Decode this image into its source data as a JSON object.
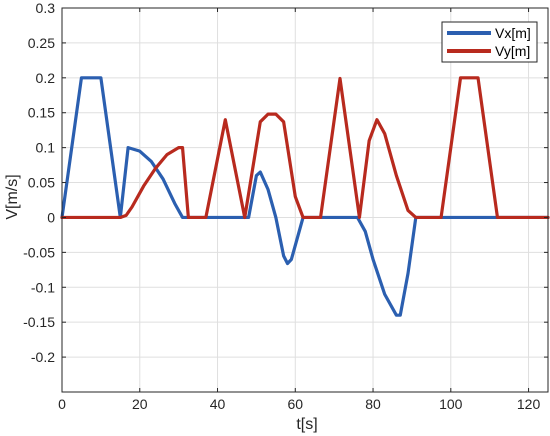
{
  "chart_data": {
    "type": "line",
    "xlabel": "t[s]",
    "ylabel": "V[m/s]",
    "xlim": [
      0,
      125
    ],
    "ylim": [
      -0.25,
      0.3
    ],
    "xticks": [
      0,
      20,
      40,
      60,
      80,
      100,
      120
    ],
    "yticks": [
      -0.25,
      -0.2,
      -0.15,
      -0.1,
      -0.05,
      0,
      0.05,
      0.1,
      0.15,
      0.2,
      0.25,
      0.3
    ],
    "ytick_labels": [
      "",
      "-0.2",
      "-0.15",
      "-0.1",
      "-0.05",
      "0",
      "0.05",
      "0.1",
      "0.15",
      "0.2",
      "0.25",
      "0.3"
    ],
    "grid": true,
    "legend_position": "top-right",
    "series": [
      {
        "name": "Vx[m]",
        "color": "#2b5fb0",
        "points": [
          [
            0,
            0
          ],
          [
            5,
            0.2
          ],
          [
            10,
            0.2
          ],
          [
            15,
            0
          ],
          [
            17,
            0.1
          ],
          [
            20,
            0.095
          ],
          [
            23,
            0.08
          ],
          [
            26,
            0.055
          ],
          [
            29,
            0.02
          ],
          [
            31,
            0
          ],
          [
            48,
            0
          ],
          [
            50,
            0.06
          ],
          [
            51,
            0.065
          ],
          [
            53,
            0.04
          ],
          [
            55,
            0
          ],
          [
            57,
            -0.055
          ],
          [
            58,
            -0.066
          ],
          [
            59,
            -0.06
          ],
          [
            61,
            -0.02
          ],
          [
            62,
            0
          ],
          [
            76,
            0
          ],
          [
            78,
            -0.02
          ],
          [
            80,
            -0.06
          ],
          [
            83,
            -0.11
          ],
          [
            86,
            -0.14
          ],
          [
            87,
            -0.14
          ],
          [
            89,
            -0.08
          ],
          [
            91,
            0
          ],
          [
            125,
            0
          ]
        ]
      },
      {
        "name": "Vy[m]",
        "color": "#b82a1e",
        "points": [
          [
            0,
            0
          ],
          [
            15,
            0
          ],
          [
            16.5,
            0.003
          ],
          [
            18,
            0.015
          ],
          [
            21,
            0.045
          ],
          [
            24,
            0.07
          ],
          [
            27,
            0.09
          ],
          [
            30,
            0.1
          ],
          [
            31,
            0.1
          ],
          [
            32.5,
            0
          ],
          [
            37,
            0
          ],
          [
            42,
            0.14
          ],
          [
            47,
            0
          ],
          [
            51,
            0.137
          ],
          [
            53,
            0.148
          ],
          [
            55,
            0.148
          ],
          [
            57,
            0.137
          ],
          [
            60,
            0.03
          ],
          [
            62,
            0
          ],
          [
            66.5,
            0
          ],
          [
            71.5,
            0.199
          ],
          [
            76.5,
            0
          ],
          [
            79,
            0.11
          ],
          [
            81,
            0.14
          ],
          [
            83,
            0.12
          ],
          [
            86,
            0.06
          ],
          [
            89,
            0.01
          ],
          [
            91,
            0
          ],
          [
            97.5,
            0
          ],
          [
            102.5,
            0.2
          ],
          [
            107,
            0.2
          ],
          [
            112,
            0
          ],
          [
            125,
            0
          ]
        ]
      }
    ]
  }
}
